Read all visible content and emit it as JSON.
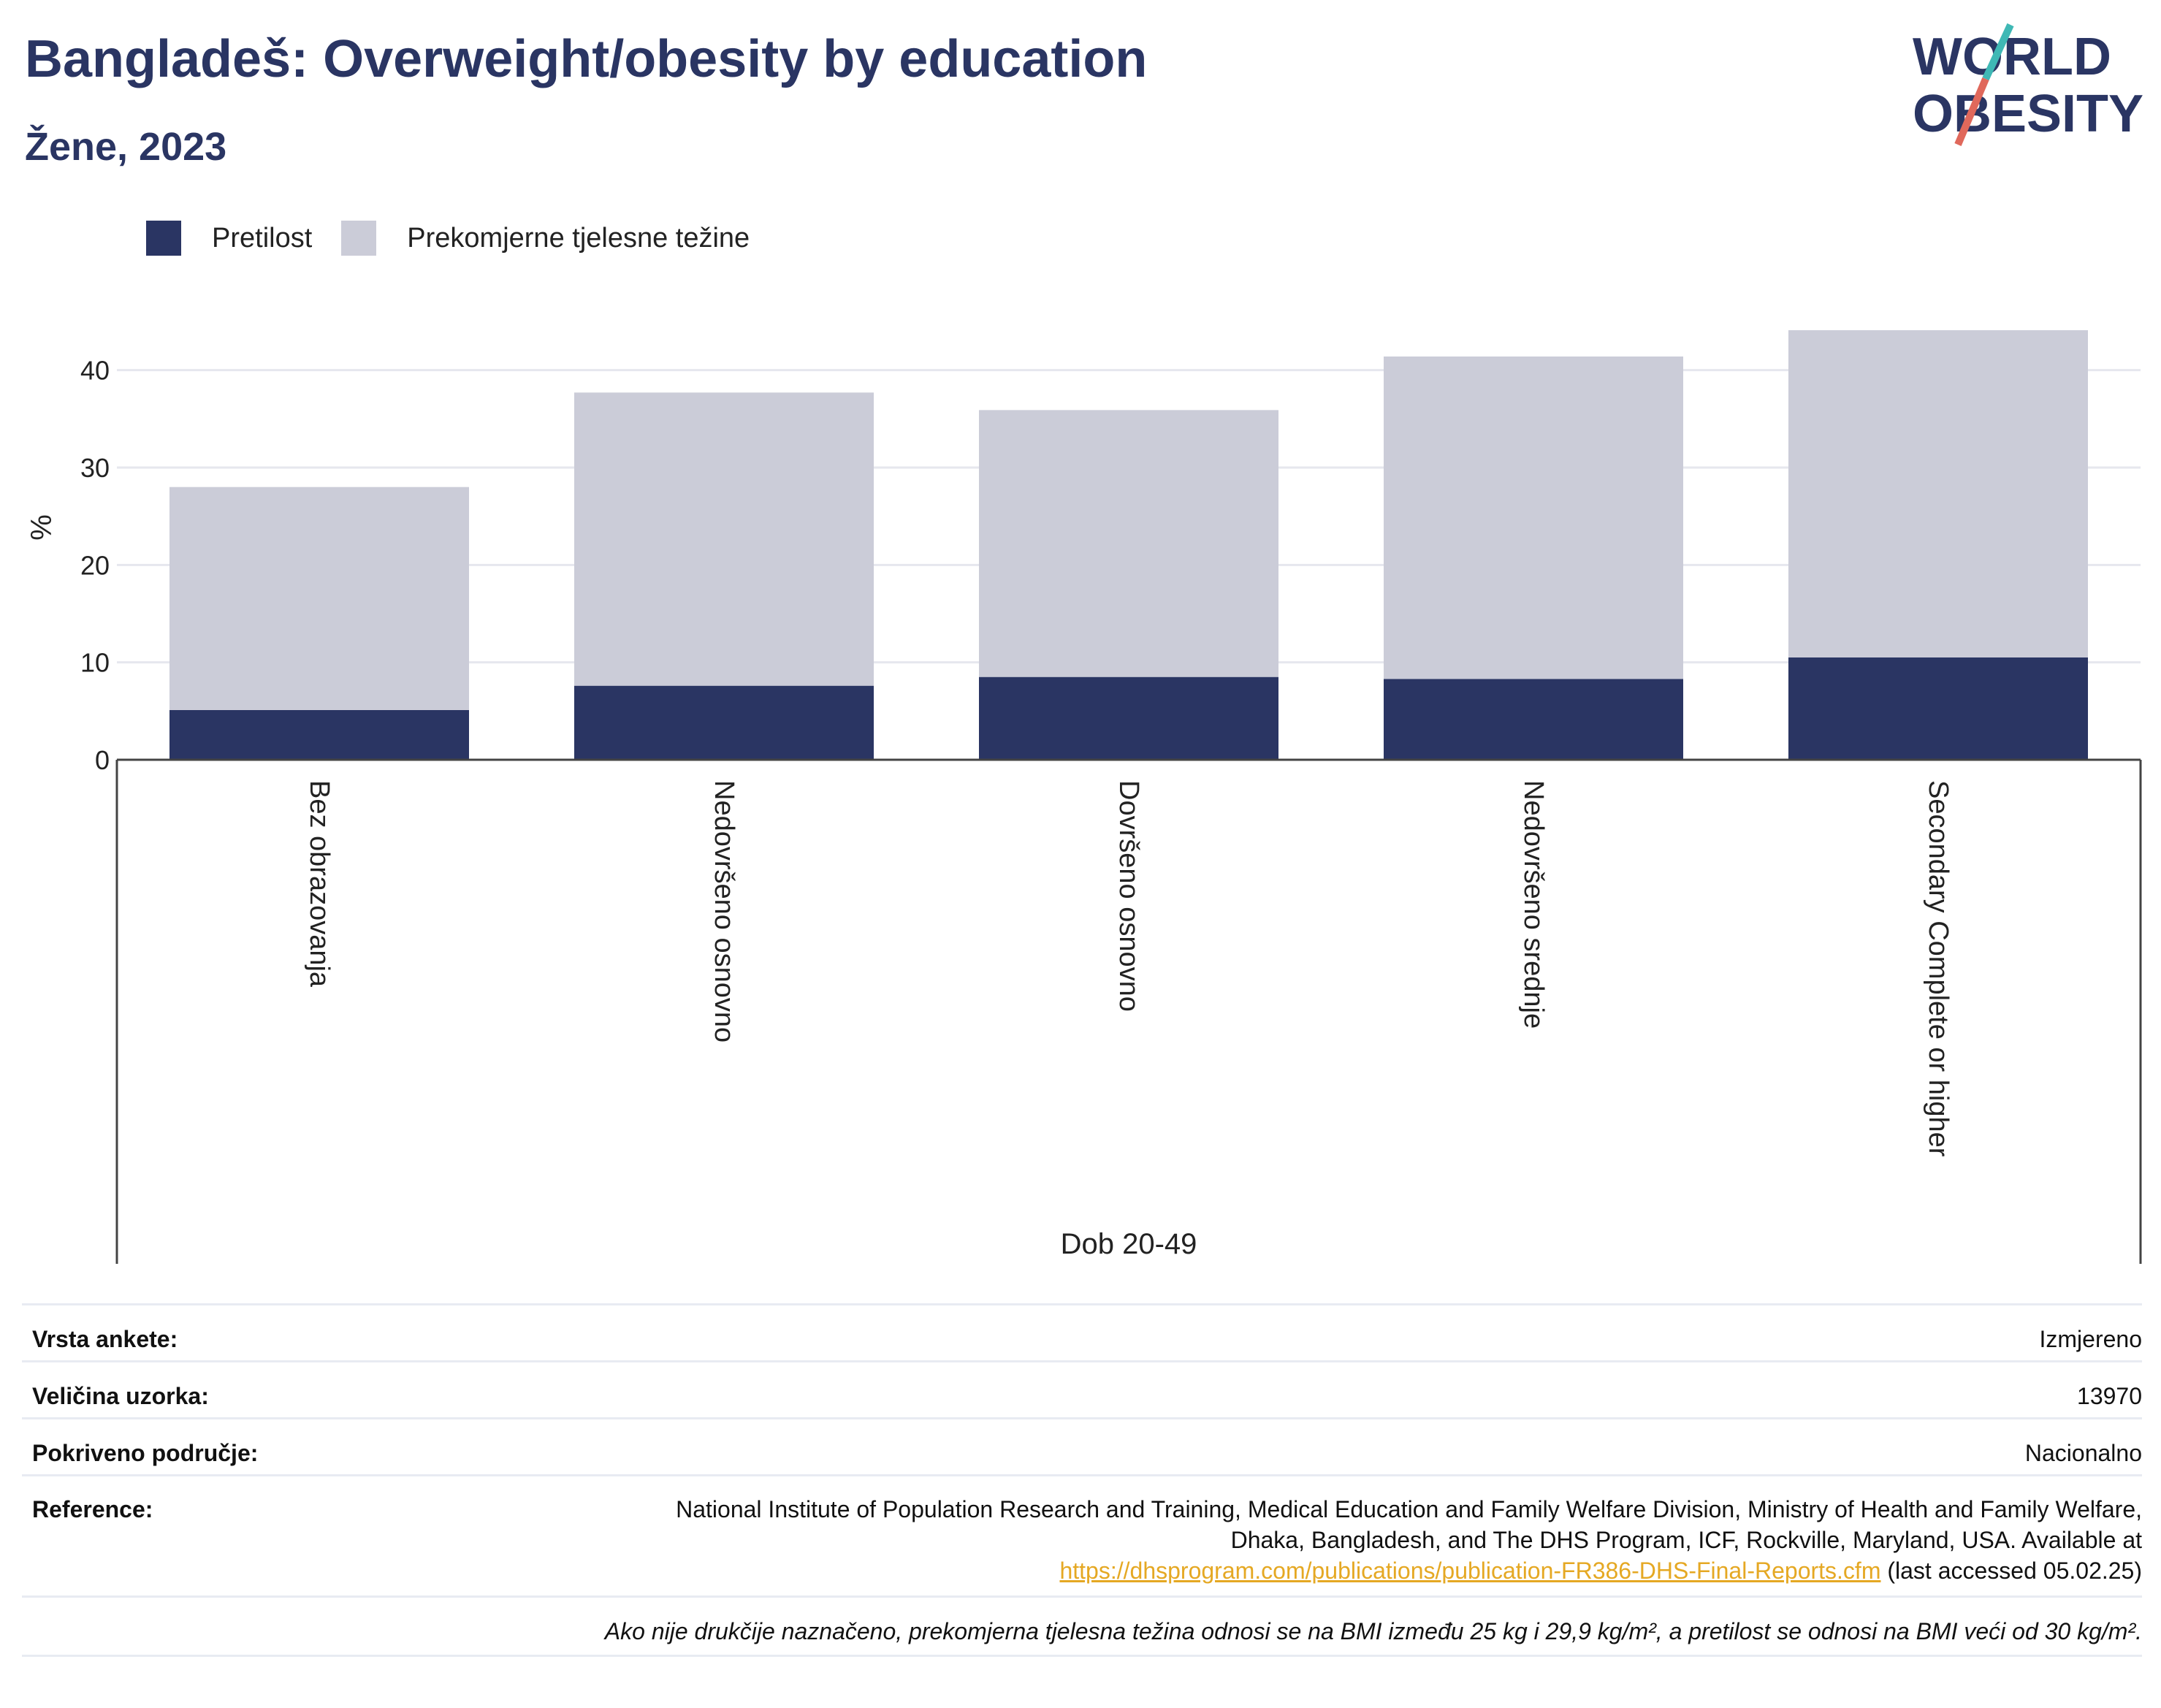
{
  "title": "Bangladeš: Overweight/obesity by education",
  "subtitle": "Žene, 2023",
  "logo": {
    "line1": "WORLD",
    "line2": "OBESITY"
  },
  "legend": {
    "items": [
      {
        "label": "Pretilost",
        "color": "#2a3563"
      },
      {
        "label": "Prekomjerne tjelesne težine",
        "color": "#cbccd8"
      }
    ]
  },
  "chart_data": {
    "type": "bar",
    "stacked": true,
    "categories": [
      "Bez obrazovanja",
      "Nedovršeno osnovno",
      "Dovršeno osnovno",
      "Nedovršeno srednje",
      "Secondary Complete or higher"
    ],
    "series": [
      {
        "name": "Pretilost",
        "color": "#2a3563",
        "values": [
          5.1,
          7.6,
          8.5,
          8.3,
          10.5
        ]
      },
      {
        "name": "Prekomjerne tjelesne težine",
        "color": "#cbccd8",
        "values": [
          22.9,
          30.1,
          27.4,
          33.1,
          33.6
        ]
      }
    ],
    "ylabel": "%",
    "xlabel": "Dob 20-49",
    "ylim": [
      0,
      45
    ],
    "yticks": [
      "0",
      "10",
      "20",
      "30",
      "40"
    ],
    "grid": true,
    "legend_position": "top-left"
  },
  "info": {
    "survey_type_label": "Vrsta ankete:",
    "survey_type_value": "Izmjereno",
    "sample_size_label": "Veličina uzorka:",
    "sample_size_value": "13970",
    "coverage_label": "Pokriveno područje:",
    "coverage_value": "Nacionalno",
    "reference_label": "Reference:",
    "reference_text_1": "National Institute of Population Research and Training, Medical Education and Family Welfare Division, Ministry of Health and Family Welfare, Dhaka, Bangladesh, and The DHS Program, ICF, Rockville, Maryland, USA. Available at",
    "reference_link": "https://dhsprogram.com/publications/publication-FR386-DHS-Final-Reports.cfm",
    "reference_text_2": " (last accessed 05.02.25)",
    "note": "Ako nije drukčije naznačeno, prekomjerna tjelesna težina odnosi se na BMI između 25 kg i 29,9 kg/m², a pretilost se odnosi na BMI veći od 30 kg/m²."
  },
  "colors": {
    "brand": "#2a3563",
    "accent_teal": "#3fb8b5",
    "accent_coral": "#e0685b",
    "link": "#e5a823"
  }
}
